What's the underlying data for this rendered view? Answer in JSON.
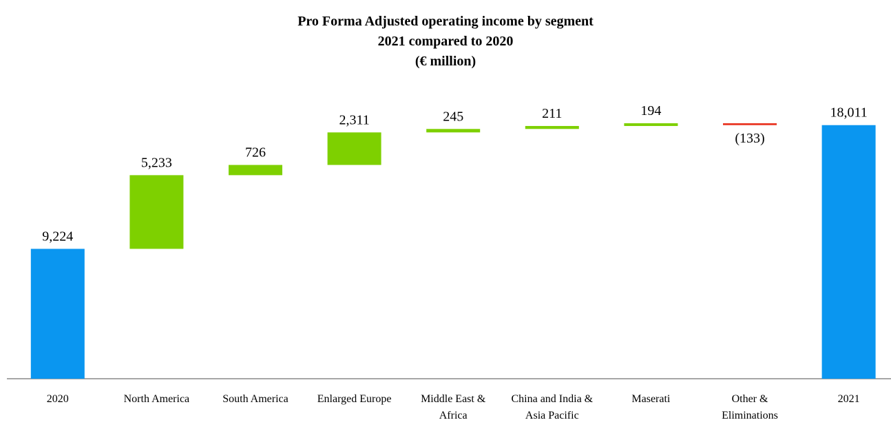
{
  "chart_data": {
    "type": "waterfall",
    "title": [
      "Pro Forma Adjusted operating income by segment",
      "2021 compared to 2020",
      "(€ million)"
    ],
    "categories": [
      "2020",
      "North America",
      "South America",
      "Enlarged Europe",
      "Middle East & Africa",
      "China and India & Asia Pacific",
      "Maserati",
      "Other & Eliminations",
      "2021"
    ],
    "values": [
      9224,
      5233,
      726,
      2311,
      245,
      211,
      194,
      -133,
      18011
    ],
    "value_labels": [
      "9,224",
      "5,233",
      "726",
      "2,311",
      "245",
      "211",
      "194",
      "(133)",
      "18,011"
    ],
    "measure": [
      "total",
      "relative",
      "relative",
      "relative",
      "relative",
      "relative",
      "relative",
      "relative",
      "total"
    ],
    "colors": {
      "total": "#0a96f0",
      "increase": "#7ed000",
      "decrease": "#e8321e"
    }
  }
}
